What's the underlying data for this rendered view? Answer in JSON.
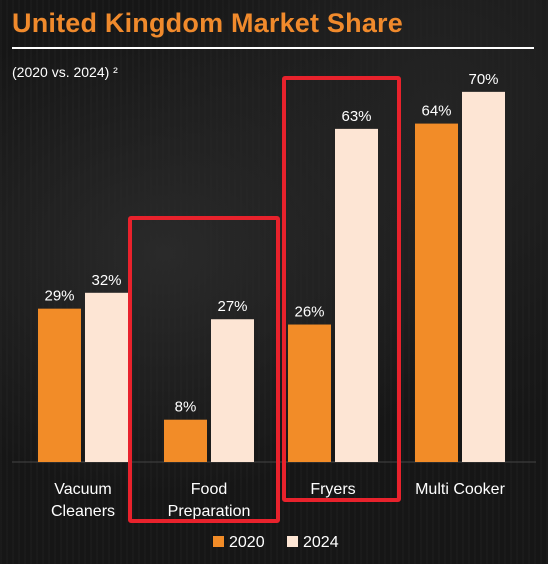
{
  "colors": {
    "title": "#f08a2c",
    "series_2020": "#f28c28",
    "series_2024": "#fde5d4",
    "highlight": "#e8222c",
    "text": "#ffffff"
  },
  "chart_data": {
    "type": "bar",
    "title": "United Kingdom Market Share",
    "subtitle": "(2020 vs. 2024) ²",
    "categories": [
      [
        "Vacuum",
        "Cleaners"
      ],
      [
        "Food",
        "Preparation"
      ],
      [
        "Fryers"
      ],
      [
        "Multi Cooker"
      ]
    ],
    "series": [
      {
        "name": "2020",
        "values": [
          29,
          8,
          26,
          64
        ],
        "labels": [
          "29%",
          "8%",
          "26%",
          "64%"
        ]
      },
      {
        "name": "2024",
        "values": [
          32,
          27,
          63,
          70
        ],
        "labels": [
          "32%",
          "27%",
          "63%",
          "70%"
        ]
      }
    ],
    "ylim": [
      0,
      80
    ],
    "legend_position": "bottom",
    "highlighted_categories": [
      "Food Preparation",
      "Fryers"
    ]
  }
}
